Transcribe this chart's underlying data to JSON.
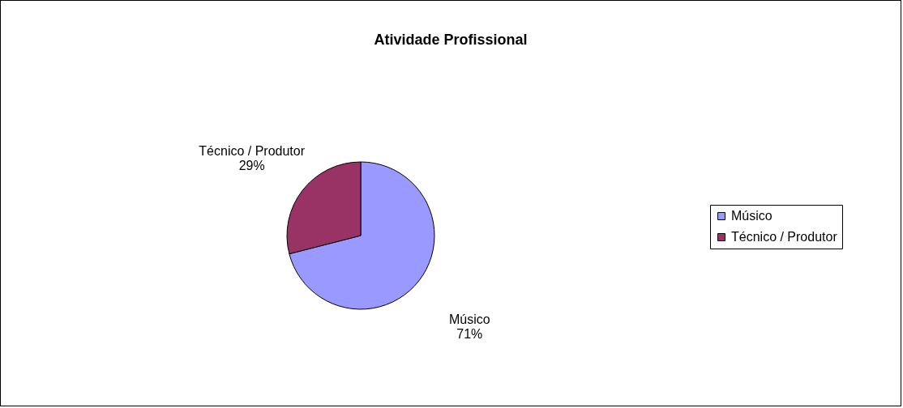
{
  "chart_data": {
    "type": "pie",
    "title": "Atividade Profissional",
    "categories": [
      "Músico",
      "Técnico / Produtor"
    ],
    "values": [
      71,
      29
    ],
    "value_labels": [
      "71%",
      "29%"
    ],
    "colors": [
      "#9999ff",
      "#993366"
    ],
    "legend": "right"
  }
}
